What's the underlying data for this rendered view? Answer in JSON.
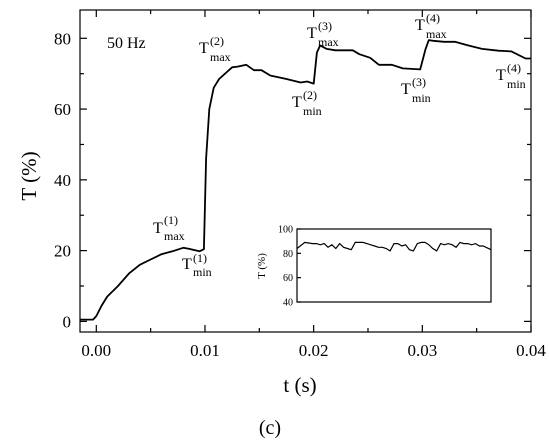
{
  "chart_data": [
    {
      "type": "line",
      "xlabel": "t (s)",
      "ylabel": "T (%)",
      "xlim": [
        -0.0015,
        0.04
      ],
      "ylim": [
        -3,
        88
      ],
      "xticks": [
        "0.00",
        "0.01",
        "0.02",
        "0.03",
        "0.04"
      ],
      "yticks": [
        "0",
        "20",
        "40",
        "60",
        "80"
      ],
      "frequency_label": "50 Hz",
      "caption": "(c)",
      "series": [
        {
          "x": [
            -0.0015,
            -0.0003,
            0.0,
            0.0005,
            0.001,
            0.002,
            0.003,
            0.004,
            0.005,
            0.006,
            0.007,
            0.008,
            0.0085,
            0.0095,
            0.0099,
            0.0101,
            0.0104,
            0.0108,
            0.0113,
            0.0125,
            0.013,
            0.0138,
            0.0145,
            0.0152,
            0.016,
            0.0175,
            0.0188,
            0.0194,
            0.02,
            0.0203,
            0.0206,
            0.0212,
            0.022,
            0.023,
            0.0236,
            0.0242,
            0.0252,
            0.026,
            0.0272,
            0.0282,
            0.0298,
            0.0303,
            0.0306,
            0.031,
            0.032,
            0.033,
            0.0342,
            0.0355,
            0.037,
            0.0382,
            0.0395,
            0.04
          ],
          "y": [
            0.5,
            0.5,
            1.5,
            4.5,
            7,
            10,
            13.5,
            16,
            17.5,
            19,
            19.8,
            20.8,
            20.5,
            19.8,
            20.4,
            46,
            60,
            66,
            68.5,
            71.8,
            72,
            72.5,
            71,
            71,
            69.5,
            68.5,
            67.5,
            67.8,
            67.2,
            76,
            78,
            77,
            76.6,
            76.6,
            76.6,
            75.5,
            74.5,
            72.5,
            72.5,
            71.5,
            71.2,
            77,
            79.5,
            79.3,
            79,
            79,
            78,
            77,
            76.5,
            76.3,
            74.3,
            74.3
          ]
        }
      ],
      "annotations": [
        {
          "label": "T",
          "superscript": "(1)",
          "subscript": "max"
        },
        {
          "label": "T",
          "superscript": "(1)",
          "subscript": "min"
        },
        {
          "label": "T",
          "superscript": "(2)",
          "subscript": "max"
        },
        {
          "label": "T",
          "superscript": "(2)",
          "subscript": "min"
        },
        {
          "label": "T",
          "superscript": "(3)",
          "subscript": "max"
        },
        {
          "label": "T",
          "superscript": "(3)",
          "subscript": "min"
        },
        {
          "label": "T",
          "superscript": "(4)",
          "subscript": "max"
        },
        {
          "label": "T",
          "superscript": "(4)",
          "subscript": "min"
        }
      ]
    },
    {
      "type": "line",
      "role": "inset",
      "ylabel": "T (%)",
      "ylim": [
        40,
        100
      ],
      "yticks": [
        "40",
        "60",
        "80",
        "100"
      ],
      "xlim": [
        0,
        1
      ],
      "series": [
        {
          "x": [
            0,
            0.04,
            0.08,
            0.1,
            0.12,
            0.14,
            0.16,
            0.18,
            0.2,
            0.22,
            0.24,
            0.26,
            0.28,
            0.3,
            0.32,
            0.34,
            0.36,
            0.38,
            0.4,
            0.42,
            0.44,
            0.46,
            0.48,
            0.5,
            0.52,
            0.54,
            0.56,
            0.58,
            0.6,
            0.62,
            0.64,
            0.66,
            0.68,
            0.7,
            0.72,
            0.74,
            0.76,
            0.78,
            0.8,
            0.82,
            0.84,
            0.86,
            0.88,
            0.9,
            0.92,
            0.94,
            0.96,
            1.0
          ],
          "y": [
            84,
            89,
            88,
            88,
            87,
            88,
            85,
            87,
            84,
            88,
            85,
            84,
            83,
            89,
            89,
            89,
            88,
            87,
            86,
            85,
            85,
            84,
            82,
            88,
            88,
            86,
            87,
            83,
            82,
            88,
            89,
            89,
            87,
            84,
            82,
            88,
            87,
            88,
            87,
            85,
            89,
            88,
            88,
            87,
            88,
            86,
            86,
            83
          ]
        }
      ]
    }
  ]
}
